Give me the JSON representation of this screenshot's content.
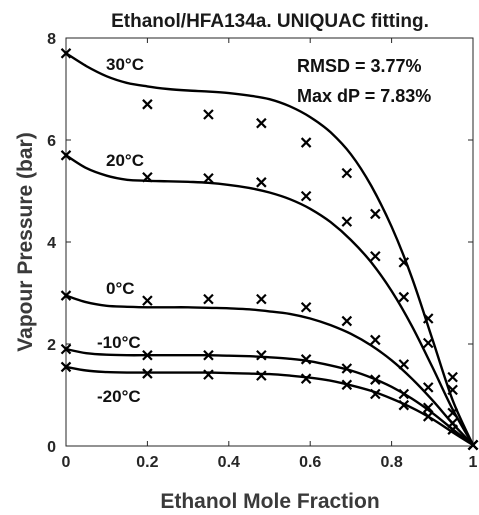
{
  "chart_data": {
    "type": "line",
    "title": "Ethanol/HFA134a. UNIQUAC fitting.",
    "xlabel": "Ethanol Mole Fraction",
    "ylabel": "Vapour Pressure (bar)",
    "xlim": [
      0,
      1
    ],
    "ylim": [
      0,
      8
    ],
    "xticks": [
      "0",
      "0.2",
      "0.4",
      "0.6",
      "0.8",
      "1"
    ],
    "yticks": [
      "0",
      "2",
      "4",
      "6",
      "8"
    ],
    "annotations": [
      "RMSD = 3.77%",
      "Max dP = 7.83%"
    ],
    "temperature_labels": [
      {
        "text": "30°C",
        "T": 30
      },
      {
        "text": "20°C",
        "T": 20
      },
      {
        "text": "0°C",
        "T": 0
      },
      {
        "text": "-10°C",
        "T": -10
      },
      {
        "text": "-20°C",
        "T": -20
      }
    ],
    "series": [
      {
        "T": 30,
        "fit_x": [
          0,
          0.05,
          0.1,
          0.15,
          0.2,
          0.25,
          0.3,
          0.35,
          0.4,
          0.45,
          0.5,
          0.55,
          0.6,
          0.65,
          0.7,
          0.75,
          0.8,
          0.85,
          0.9,
          0.95,
          1.0
        ],
        "fit_y": [
          7.7,
          7.45,
          7.25,
          7.12,
          7.05,
          7.0,
          6.97,
          6.95,
          6.92,
          6.87,
          6.8,
          6.66,
          6.45,
          6.15,
          5.72,
          5.1,
          4.3,
          3.3,
          2.1,
          0.9,
          0.02
        ],
        "exp_x": [
          0,
          0.2,
          0.35,
          0.48,
          0.59,
          0.69,
          0.76,
          0.83,
          0.89,
          0.95,
          1.0
        ],
        "exp_y": [
          7.7,
          6.7,
          6.5,
          6.33,
          5.95,
          5.35,
          4.55,
          3.6,
          2.5,
          1.35,
          0.02
        ]
      },
      {
        "T": 20,
        "fit_x": [
          0,
          0.05,
          0.1,
          0.15,
          0.2,
          0.25,
          0.3,
          0.35,
          0.4,
          0.45,
          0.5,
          0.55,
          0.6,
          0.65,
          0.7,
          0.75,
          0.8,
          0.85,
          0.9,
          0.95,
          1.0
        ],
        "fit_y": [
          5.7,
          5.45,
          5.3,
          5.22,
          5.2,
          5.19,
          5.18,
          5.16,
          5.12,
          5.06,
          4.97,
          4.84,
          4.65,
          4.39,
          4.04,
          3.6,
          3.04,
          2.35,
          1.55,
          0.72,
          0.02
        ],
        "exp_x": [
          0,
          0.2,
          0.35,
          0.48,
          0.59,
          0.69,
          0.76,
          0.83,
          0.89,
          0.95,
          1.0
        ],
        "exp_y": [
          5.7,
          5.27,
          5.25,
          5.17,
          4.9,
          4.4,
          3.72,
          2.92,
          2.02,
          1.1,
          0.02
        ]
      },
      {
        "T": 0,
        "fit_x": [
          0,
          0.05,
          0.1,
          0.15,
          0.2,
          0.25,
          0.3,
          0.35,
          0.4,
          0.45,
          0.5,
          0.55,
          0.6,
          0.65,
          0.7,
          0.75,
          0.8,
          0.85,
          0.9,
          0.95,
          1.0
        ],
        "fit_y": [
          2.95,
          2.82,
          2.75,
          2.73,
          2.72,
          2.72,
          2.72,
          2.71,
          2.7,
          2.68,
          2.64,
          2.59,
          2.5,
          2.37,
          2.2,
          1.97,
          1.68,
          1.32,
          0.9,
          0.44,
          0.02
        ],
        "exp_x": [
          0,
          0.2,
          0.35,
          0.48,
          0.59,
          0.69,
          0.76,
          0.83,
          0.89,
          0.95,
          1.0
        ],
        "exp_y": [
          2.95,
          2.85,
          2.88,
          2.88,
          2.72,
          2.45,
          2.08,
          1.6,
          1.15,
          0.65,
          0.02
        ]
      },
      {
        "T": -10,
        "fit_x": [
          0,
          0.05,
          0.1,
          0.15,
          0.2,
          0.25,
          0.3,
          0.35,
          0.4,
          0.45,
          0.5,
          0.55,
          0.6,
          0.65,
          0.7,
          0.75,
          0.8,
          0.85,
          0.9,
          0.95,
          1.0
        ],
        "fit_y": [
          1.9,
          1.82,
          1.79,
          1.78,
          1.78,
          1.78,
          1.78,
          1.78,
          1.77,
          1.76,
          1.74,
          1.71,
          1.66,
          1.58,
          1.48,
          1.34,
          1.16,
          0.93,
          0.65,
          0.33,
          0.02
        ],
        "exp_x": [
          0,
          0.2,
          0.35,
          0.48,
          0.59,
          0.69,
          0.76,
          0.83,
          0.89,
          0.95,
          1.0
        ],
        "exp_y": [
          1.9,
          1.78,
          1.78,
          1.78,
          1.7,
          1.52,
          1.3,
          1.02,
          0.75,
          0.45,
          0.02
        ]
      },
      {
        "T": -20,
        "fit_x": [
          0,
          0.05,
          0.1,
          0.15,
          0.2,
          0.25,
          0.3,
          0.35,
          0.4,
          0.45,
          0.5,
          0.55,
          0.6,
          0.65,
          0.7,
          0.75,
          0.8,
          0.85,
          0.9,
          0.95,
          1.0
        ],
        "fit_y": [
          1.55,
          1.48,
          1.45,
          1.44,
          1.44,
          1.44,
          1.44,
          1.44,
          1.43,
          1.42,
          1.41,
          1.38,
          1.34,
          1.28,
          1.19,
          1.08,
          0.93,
          0.75,
          0.53,
          0.27,
          0.02
        ],
        "exp_x": [
          0,
          0.2,
          0.35,
          0.48,
          0.59,
          0.69,
          0.76,
          0.83,
          0.89,
          0.95,
          1.0
        ],
        "exp_y": [
          1.55,
          1.42,
          1.4,
          1.38,
          1.32,
          1.2,
          1.02,
          0.8,
          0.58,
          0.32,
          0.02
        ]
      }
    ]
  }
}
